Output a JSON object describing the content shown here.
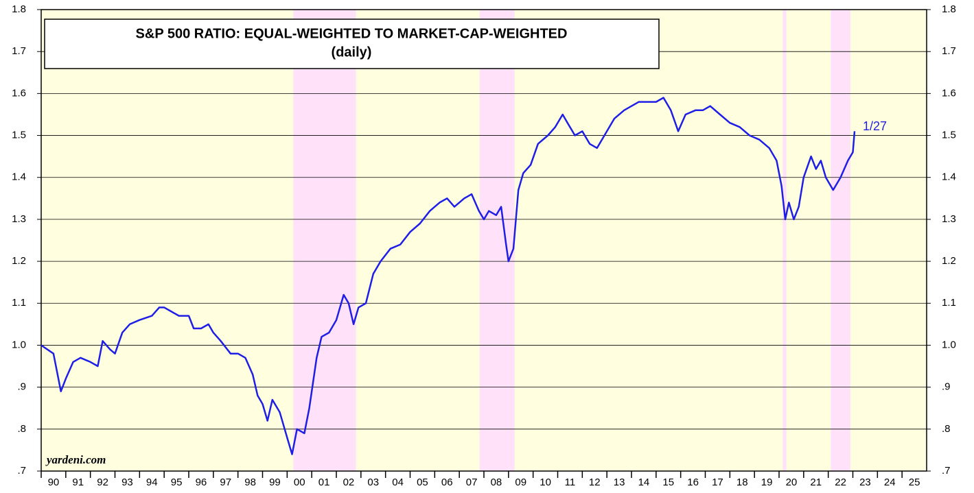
{
  "chart_data": {
    "type": "line",
    "title": "S&P 500 RATIO: EQUAL-WEIGHTED TO MARKET-CAP-WEIGHTED",
    "subtitle": "(daily)",
    "source": "yardeni.com",
    "annotation": "1/27",
    "background_color": "#ffffe0",
    "shade_color": "#ffe2fa",
    "shaded_periods": [
      [
        2000.25,
        2002.8
      ],
      [
        2007.82,
        2009.25
      ],
      [
        2020.15,
        2020.3
      ],
      [
        2022.1,
        2022.9
      ]
    ],
    "xlim": [
      1990,
      2026
    ],
    "xticks": [
      {
        "value": 1990,
        "label": "90"
      },
      {
        "value": 1991,
        "label": "91"
      },
      {
        "value": 1992,
        "label": "92"
      },
      {
        "value": 1993,
        "label": "93"
      },
      {
        "value": 1994,
        "label": "94"
      },
      {
        "value": 1995,
        "label": "95"
      },
      {
        "value": 1996,
        "label": "96"
      },
      {
        "value": 1997,
        "label": "97"
      },
      {
        "value": 1998,
        "label": "98"
      },
      {
        "value": 1999,
        "label": "99"
      },
      {
        "value": 2000,
        "label": "00"
      },
      {
        "value": 2001,
        "label": "01"
      },
      {
        "value": 2002,
        "label": "02"
      },
      {
        "value": 2003,
        "label": "03"
      },
      {
        "value": 2004,
        "label": "04"
      },
      {
        "value": 2005,
        "label": "05"
      },
      {
        "value": 2006,
        "label": "06"
      },
      {
        "value": 2007,
        "label": "07"
      },
      {
        "value": 2008,
        "label": "08"
      },
      {
        "value": 2009,
        "label": "09"
      },
      {
        "value": 2010,
        "label": "10"
      },
      {
        "value": 2011,
        "label": "11"
      },
      {
        "value": 2012,
        "label": "12"
      },
      {
        "value": 2013,
        "label": "13"
      },
      {
        "value": 2014,
        "label": "14"
      },
      {
        "value": 2015,
        "label": "15"
      },
      {
        "value": 2016,
        "label": "16"
      },
      {
        "value": 2017,
        "label": "17"
      },
      {
        "value": 2018,
        "label": "18"
      },
      {
        "value": 2019,
        "label": "19"
      },
      {
        "value": 2020,
        "label": "20"
      },
      {
        "value": 2021,
        "label": "21"
      },
      {
        "value": 2022,
        "label": "22"
      },
      {
        "value": 2023,
        "label": "23"
      },
      {
        "value": 2024,
        "label": "24"
      },
      {
        "value": 2025,
        "label": "25"
      }
    ],
    "ylim": [
      0.7,
      1.8
    ],
    "yticks": [
      {
        "value": 0.7,
        "label": ".7"
      },
      {
        "value": 0.8,
        "label": ".8"
      },
      {
        "value": 0.9,
        "label": ".9"
      },
      {
        "value": 1.0,
        "label": "1.0"
      },
      1.1,
      1.2,
      1.3,
      1.4,
      1.5,
      1.6,
      1.7,
      1.8
    ],
    "x": [
      1990.0,
      1990.5,
      1990.8,
      1991.0,
      1991.3,
      1991.6,
      1992.0,
      1992.3,
      1992.5,
      1992.8,
      1993.0,
      1993.3,
      1993.6,
      1994.0,
      1994.5,
      1994.8,
      1995.0,
      1995.3,
      1995.6,
      1996.0,
      1996.2,
      1996.5,
      1996.8,
      1997.0,
      1997.3,
      1997.7,
      1998.0,
      1998.3,
      1998.6,
      1998.8,
      1999.0,
      1999.2,
      1999.4,
      1999.7,
      2000.0,
      2000.2,
      2000.4,
      2000.7,
      2000.9,
      2001.2,
      2001.4,
      2001.7,
      2002.0,
      2002.3,
      2002.5,
      2002.7,
      2002.9,
      2003.2,
      2003.5,
      2003.8,
      2004.2,
      2004.6,
      2005.0,
      2005.4,
      2005.8,
      2006.2,
      2006.5,
      2006.8,
      2007.2,
      2007.5,
      2007.8,
      2008.0,
      2008.2,
      2008.5,
      2008.7,
      2008.9,
      2009.0,
      2009.2,
      2009.4,
      2009.6,
      2009.9,
      2010.2,
      2010.6,
      2010.9,
      2011.2,
      2011.4,
      2011.7,
      2012.0,
      2012.3,
      2012.6,
      2012.9,
      2013.3,
      2013.7,
      2014.0,
      2014.3,
      2014.7,
      2015.0,
      2015.3,
      2015.6,
      2015.9,
      2016.2,
      2016.6,
      2016.9,
      2017.2,
      2017.6,
      2018.0,
      2018.4,
      2018.8,
      2019.2,
      2019.6,
      2019.9,
      2020.1,
      2020.25,
      2020.4,
      2020.6,
      2020.8,
      2021.0,
      2021.3,
      2021.5,
      2021.7,
      2021.9,
      2022.2,
      2022.5,
      2022.8,
      2023.0,
      2023.07
    ],
    "series": [
      {
        "color": "#1e1ee6",
        "values": [
          1.0,
          0.98,
          0.89,
          0.92,
          0.96,
          0.97,
          0.96,
          0.95,
          1.01,
          0.99,
          0.98,
          1.03,
          1.05,
          1.06,
          1.07,
          1.09,
          1.09,
          1.08,
          1.07,
          1.07,
          1.04,
          1.04,
          1.05,
          1.03,
          1.01,
          0.98,
          0.98,
          0.97,
          0.93,
          0.88,
          0.86,
          0.82,
          0.87,
          0.84,
          0.78,
          0.74,
          0.8,
          0.79,
          0.85,
          0.97,
          1.02,
          1.03,
          1.06,
          1.12,
          1.1,
          1.05,
          1.09,
          1.1,
          1.17,
          1.2,
          1.23,
          1.24,
          1.27,
          1.29,
          1.32,
          1.34,
          1.35,
          1.33,
          1.35,
          1.36,
          1.32,
          1.3,
          1.32,
          1.31,
          1.33,
          1.24,
          1.2,
          1.23,
          1.37,
          1.41,
          1.43,
          1.48,
          1.5,
          1.52,
          1.55,
          1.53,
          1.5,
          1.51,
          1.48,
          1.47,
          1.5,
          1.54,
          1.56,
          1.57,
          1.58,
          1.58,
          1.58,
          1.59,
          1.56,
          1.51,
          1.55,
          1.56,
          1.56,
          1.57,
          1.55,
          1.53,
          1.52,
          1.5,
          1.49,
          1.47,
          1.44,
          1.38,
          1.3,
          1.34,
          1.3,
          1.33,
          1.4,
          1.45,
          1.42,
          1.44,
          1.4,
          1.37,
          1.4,
          1.44,
          1.46,
          1.51
        ]
      }
    ]
  }
}
